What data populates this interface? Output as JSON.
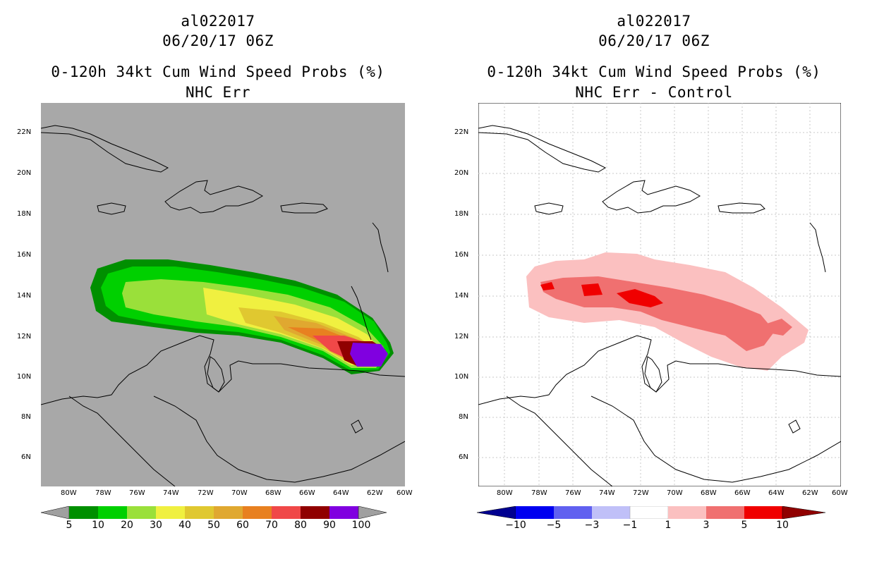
{
  "panels": [
    {
      "title_storm": "al022017",
      "title_time": "06/20/17 06Z",
      "title_product": "0-120h 34kt Cum Wind Speed Probs (%)",
      "title_sub": "NHC Err",
      "colorbar": {
        "colors": [
          "#008f00",
          "#00d000",
          "#9ae03a",
          "#f0f040",
          "#e0c830",
          "#e0a830",
          "#e88020",
          "#f04848",
          "#900000",
          "#8000e0"
        ],
        "labels": [
          "5",
          "10",
          "20",
          "30",
          "40",
          "50",
          "60",
          "70",
          "80",
          "90",
          "100"
        ],
        "end_color": "#a0a0a0"
      }
    },
    {
      "title_storm": "al022017",
      "title_time": "06/20/17 06Z",
      "title_product": "0-120h 34kt Cum Wind Speed Probs (%)",
      "title_sub": "NHC Err - Control",
      "colorbar": {
        "colors": [
          "#0000f0",
          "#6060f0",
          "#c0c0f8",
          "#ffffff",
          "#fbc0c0",
          "#f07070",
          "#f00000"
        ],
        "labels": [
          "−10",
          "−5",
          "−3",
          "−1",
          "1",
          "3",
          "5",
          "10"
        ],
        "left_end": "#000090",
        "right_end": "#900000"
      }
    }
  ],
  "map_axes": {
    "lat_labels": [
      "22N",
      "20N",
      "18N",
      "16N",
      "14N",
      "12N",
      "10N",
      "8N",
      "6N"
    ],
    "lon_labels": [
      "80W",
      "78W",
      "76W",
      "74W",
      "72W",
      "70W",
      "68W",
      "66W",
      "64W",
      "62W",
      "60W"
    ]
  },
  "colors": {
    "land_gray": "#a8a8a8",
    "grid": "#c8c8c8"
  }
}
